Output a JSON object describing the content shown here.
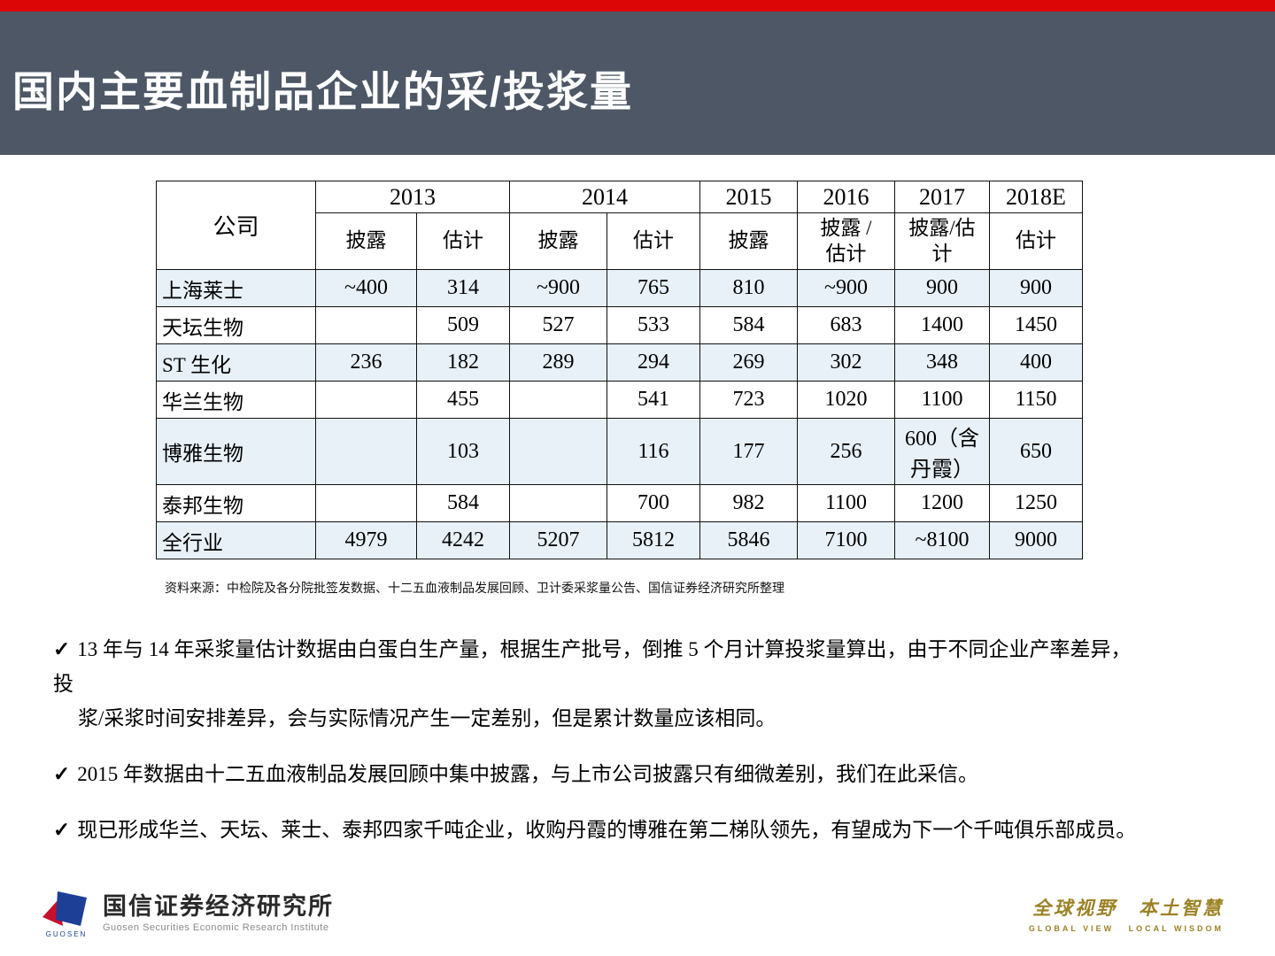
{
  "header": {
    "title": "国内主要血制品企业的采/投浆量",
    "band_color": "#4d5766",
    "accent_color": "#dd0606"
  },
  "table": {
    "corner_label": "公司",
    "year_groups": [
      {
        "label": "2013",
        "span": 2
      },
      {
        "label": "2014",
        "span": 2
      },
      {
        "label": "2015",
        "span": 1
      },
      {
        "label": "2016",
        "span": 1
      },
      {
        "label": "2017",
        "span": 1
      },
      {
        "label": "2018E",
        "span": 1
      }
    ],
    "sub_headers": [
      "披露",
      "估计",
      "披露",
      "估计",
      "披露",
      "披露 /\n估计",
      "披露/估\n计",
      "估计"
    ],
    "rows": [
      {
        "company": "上海莱士",
        "values": [
          "~400",
          "314",
          "~900",
          "765",
          "810",
          "~900",
          "900",
          "900"
        ]
      },
      {
        "company": "天坛生物",
        "values": [
          "",
          "509",
          "527",
          "533",
          "584",
          "683",
          "1400",
          "1450"
        ]
      },
      {
        "company": "ST 生化",
        "values": [
          "236",
          "182",
          "289",
          "294",
          "269",
          "302",
          "348",
          "400"
        ]
      },
      {
        "company": "华兰生物",
        "values": [
          "",
          "455",
          "",
          "541",
          "723",
          "1020",
          "1100",
          "1150"
        ]
      },
      {
        "company": "博雅生物",
        "values": [
          "",
          "103",
          "",
          "116",
          "177",
          "256",
          "600（含\n丹霞）",
          "650"
        ]
      },
      {
        "company": "泰邦生物",
        "values": [
          "",
          "584",
          "",
          "700",
          "982",
          "1100",
          "1200",
          "1250"
        ]
      },
      {
        "company": "全行业",
        "values": [
          "4979",
          "4242",
          "5207",
          "5812",
          "5846",
          "7100",
          "~8100",
          "9000"
        ]
      }
    ],
    "row_shade_color": "#e8f1f8",
    "source": "资料来源：中检院及各分院批签发数据、十二五血液制品发展回顾、卫计委采浆量公告、国信证券经济研究所整理"
  },
  "bullets": {
    "check": "✓",
    "b1_line1": "13 年与 14 年采浆量估计数据由白蛋白生产量，根据生产批号，倒推 5 个月计算投浆量算出，由于不同企业产率差异，",
    "b1_line2": "投",
    "b1_line3": "浆/采浆时间安排差异，会与实际情况产生一定差别，但是累计数量应该相同。",
    "b2": "2015 年数据由十二五血液制品发展回顾中集中披露，与上市公司披露只有细微差别，我们在此采信。",
    "b3": "现已形成华兰、天坛、莱士、泰邦四家千吨企业，收购丹霞的博雅在第二梯队领先，有望成为下一个千吨俱乐部成员。"
  },
  "footer": {
    "logo_mark": "GUOSEN",
    "org_name": "国信证券经济研究所",
    "org_sub": "Guosen Securities Economic Research Institute",
    "slogan_cn": "全球视野　本土智慧",
    "slogan_en": "GLOBAL VIEW   LOCAL WISDOM",
    "logo_blue": "#1d3f96",
    "logo_red": "#c8102e"
  }
}
